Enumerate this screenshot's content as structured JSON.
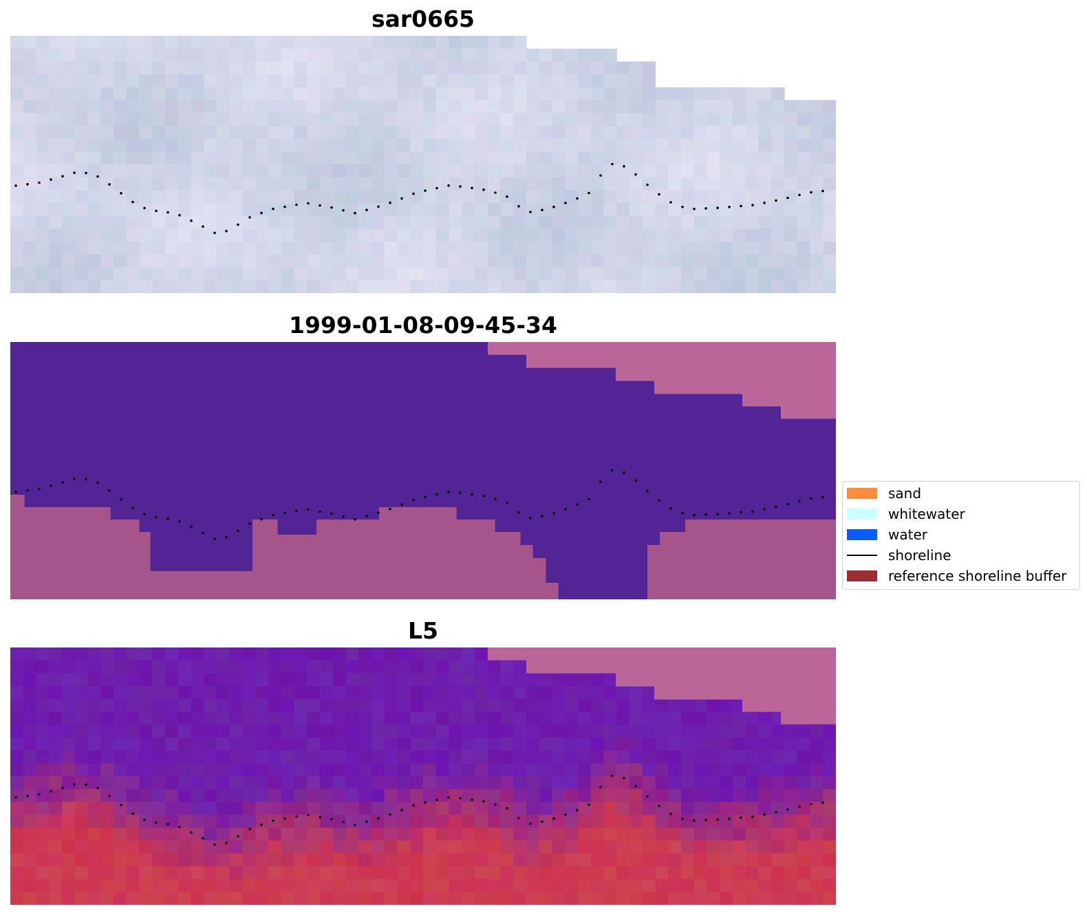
{
  "panels": [
    {
      "title": "sar0665",
      "kind": "rgb"
    },
    {
      "title": "1999-01-08-09-45-34",
      "kind": "classification"
    },
    {
      "title": "L5",
      "kind": "index"
    }
  ],
  "legend": {
    "items": [
      {
        "label": "sand",
        "color": "#ff8c3a",
        "type": "patch"
      },
      {
        "label": "whitewater",
        "color": "#ccffff",
        "type": "patch"
      },
      {
        "label": "water",
        "color": "#0a5cff",
        "type": "patch"
      },
      {
        "label": "shoreline",
        "color": "#000000",
        "type": "line"
      },
      {
        "label": "reference shoreline buffer",
        "color": "#9b2d33",
        "type": "patch"
      }
    ]
  },
  "colors": {
    "buffer_overlay": "#bb6698",
    "water_class": "#532496",
    "land_class": "#a55589",
    "shoreline": "#000000"
  }
}
